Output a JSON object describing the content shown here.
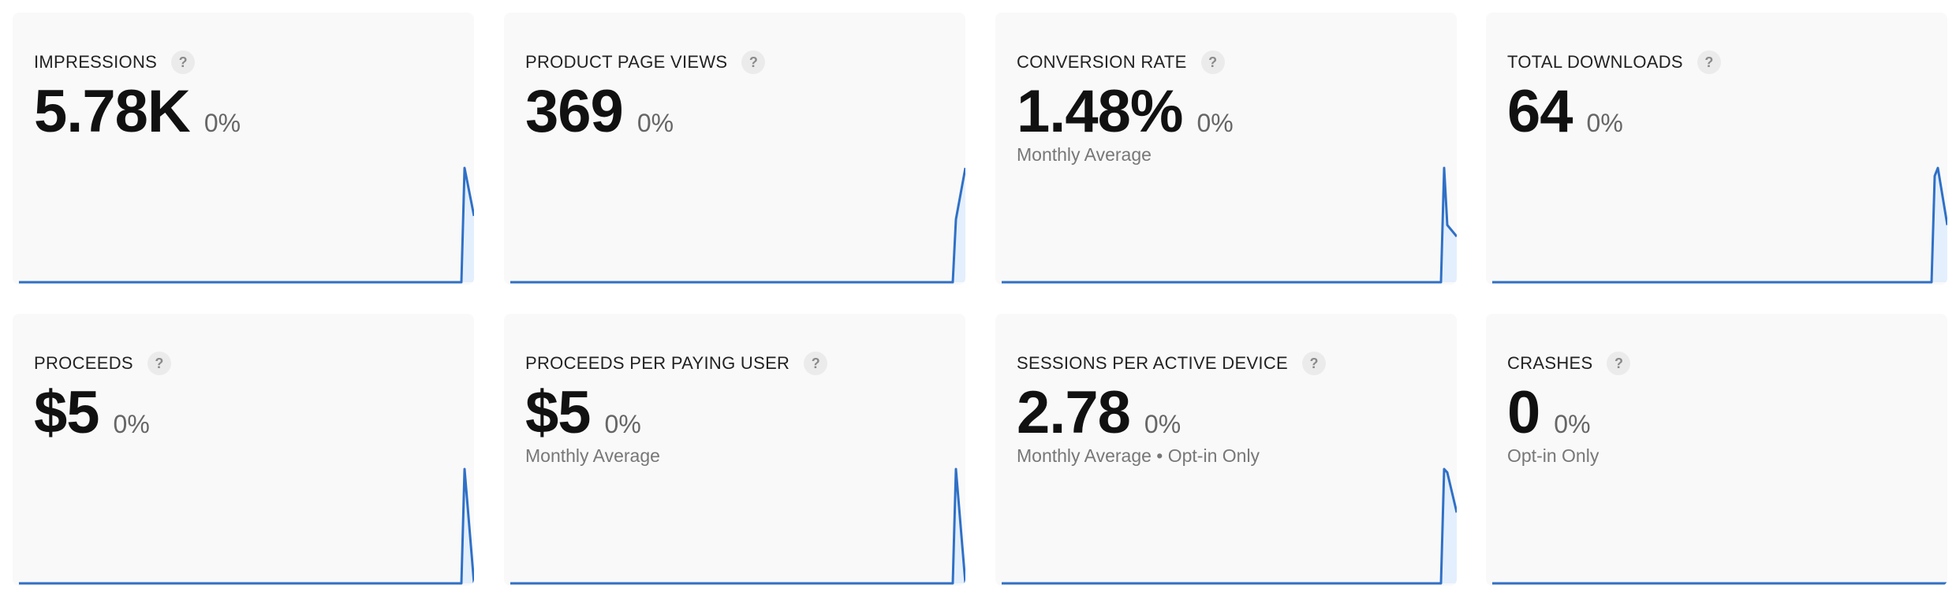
{
  "colors": {
    "line": "#2f70c6",
    "fill": "#e4effd",
    "card": "#f9f9f9"
  },
  "cards": [
    {
      "title": "IMPRESSIONS",
      "help": "?",
      "value": "5.78K",
      "change": "0%",
      "subtitle": "",
      "trend": [
        1.0,
        0.58
      ]
    },
    {
      "title": "PRODUCT PAGE VIEWS",
      "help": "?",
      "value": "369",
      "change": "0%",
      "subtitle": "",
      "trend": [
        0.55,
        1.0
      ]
    },
    {
      "title": "CONVERSION RATE",
      "help": "?",
      "value": "1.48%",
      "change": "0%",
      "subtitle": "Monthly Average",
      "trend": [
        1.0,
        0.5,
        0.4
      ]
    },
    {
      "title": "TOTAL DOWNLOADS",
      "help": "?",
      "value": "64",
      "change": "0%",
      "subtitle": "",
      "trend": [
        0.93,
        1.0,
        0.5
      ]
    },
    {
      "title": "PROCEEDS",
      "help": "?",
      "value": "$5",
      "change": "0%",
      "subtitle": "",
      "trend": [
        1.0,
        0
      ]
    },
    {
      "title": "PROCEEDS PER PAYING USER",
      "help": "?",
      "value": "$5",
      "change": "0%",
      "subtitle": "Monthly Average",
      "trend": [
        1.0,
        0
      ]
    },
    {
      "title": "SESSIONS PER ACTIVE DEVICE",
      "help": "?",
      "value": "2.78",
      "change": "0%",
      "subtitle": "Monthly Average • Opt-in Only",
      "trend": [
        1.0,
        0.97,
        0.62
      ]
    },
    {
      "title": "CRASHES",
      "help": "?",
      "value": "0",
      "change": "0%",
      "subtitle": "Opt-in Only",
      "trend": [
        0,
        0
      ]
    }
  ]
}
